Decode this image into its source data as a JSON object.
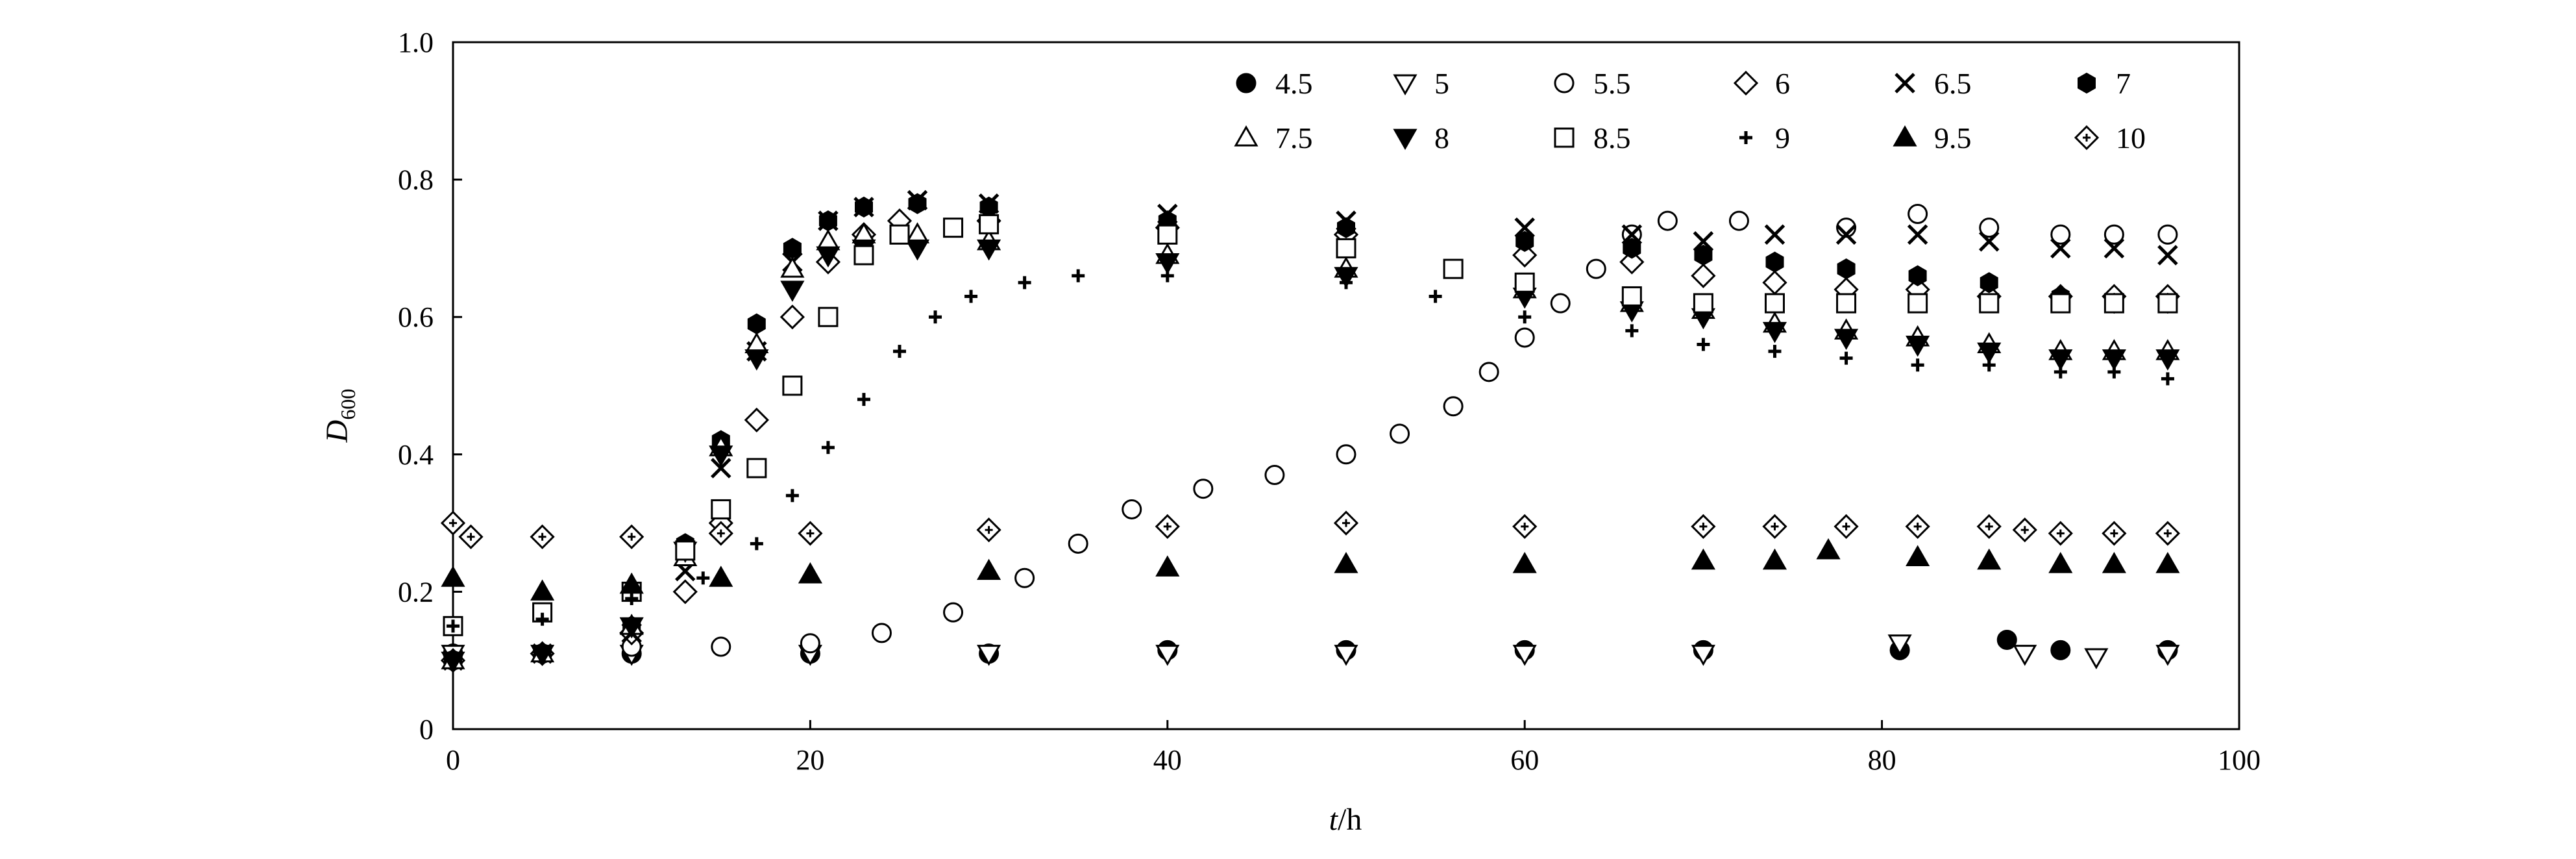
{
  "chart_data": {
    "type": "scatter",
    "xlabel": {
      "italic": "t",
      "rest": "/h"
    },
    "ylabel": {
      "main": "D",
      "sub": "600"
    },
    "xlim": [
      0,
      100
    ],
    "ylim": [
      0,
      1.0
    ],
    "xticks": [
      "0",
      "20",
      "40",
      "60",
      "80",
      "100"
    ],
    "yticks": [
      "0",
      "0.2",
      "0.4",
      "0.6",
      "0.8",
      "1.0"
    ],
    "xtick_values": [
      0,
      20,
      40,
      60,
      80,
      100
    ],
    "ytick_values": [
      0,
      0.2,
      0.4,
      0.6,
      0.8,
      1.0
    ],
    "grid": false,
    "legend_position": "top-right",
    "series": [
      {
        "name": "4.5",
        "marker": "circle-filled",
        "points": [
          [
            0,
            0.11
          ],
          [
            10,
            0.11
          ],
          [
            20,
            0.11
          ],
          [
            30,
            0.11
          ],
          [
            40,
            0.115
          ],
          [
            50,
            0.115
          ],
          [
            60,
            0.115
          ],
          [
            70,
            0.115
          ],
          [
            81,
            0.115
          ],
          [
            87,
            0.13
          ],
          [
            90,
            0.115
          ],
          [
            96,
            0.115
          ]
        ]
      },
      {
        "name": "5",
        "marker": "triangle-down-open",
        "points": [
          [
            0,
            0.11
          ],
          [
            10,
            0.11
          ],
          [
            20,
            0.11
          ],
          [
            30,
            0.11
          ],
          [
            40,
            0.11
          ],
          [
            50,
            0.11
          ],
          [
            60,
            0.11
          ],
          [
            70,
            0.11
          ],
          [
            81,
            0.125
          ],
          [
            88,
            0.11
          ],
          [
            92,
            0.105
          ],
          [
            96,
            0.11
          ]
        ]
      },
      {
        "name": "5.5",
        "marker": "circle-open",
        "points": [
          [
            0,
            0.1
          ],
          [
            5,
            0.11
          ],
          [
            10,
            0.12
          ],
          [
            15,
            0.12
          ],
          [
            20,
            0.125
          ],
          [
            24,
            0.14
          ],
          [
            28,
            0.17
          ],
          [
            32,
            0.22
          ],
          [
            35,
            0.27
          ],
          [
            38,
            0.32
          ],
          [
            42,
            0.35
          ],
          [
            46,
            0.37
          ],
          [
            50,
            0.4
          ],
          [
            53,
            0.43
          ],
          [
            56,
            0.47
          ],
          [
            58,
            0.52
          ],
          [
            60,
            0.57
          ],
          [
            62,
            0.62
          ],
          [
            64,
            0.67
          ],
          [
            66,
            0.72
          ],
          [
            68,
            0.74
          ],
          [
            72,
            0.74
          ],
          [
            78,
            0.73
          ],
          [
            82,
            0.75
          ],
          [
            86,
            0.73
          ],
          [
            90,
            0.72
          ],
          [
            93,
            0.72
          ],
          [
            96,
            0.72
          ]
        ]
      },
      {
        "name": "6",
        "marker": "diamond-open",
        "points": [
          [
            0,
            0.1
          ],
          [
            5,
            0.11
          ],
          [
            10,
            0.14
          ],
          [
            13,
            0.2
          ],
          [
            15,
            0.3
          ],
          [
            17,
            0.45
          ],
          [
            19,
            0.6
          ],
          [
            21,
            0.68
          ],
          [
            23,
            0.72
          ],
          [
            25,
            0.74
          ],
          [
            30,
            0.74
          ],
          [
            40,
            0.73
          ],
          [
            50,
            0.72
          ],
          [
            60,
            0.69
          ],
          [
            66,
            0.68
          ],
          [
            70,
            0.66
          ],
          [
            74,
            0.65
          ],
          [
            78,
            0.64
          ],
          [
            82,
            0.64
          ],
          [
            86,
            0.63
          ],
          [
            90,
            0.63
          ],
          [
            93,
            0.63
          ],
          [
            96,
            0.63
          ]
        ]
      },
      {
        "name": "6.5",
        "marker": "x",
        "points": [
          [
            0,
            0.1
          ],
          [
            5,
            0.11
          ],
          [
            10,
            0.14
          ],
          [
            13,
            0.23
          ],
          [
            15,
            0.38
          ],
          [
            17,
            0.55
          ],
          [
            19,
            0.68
          ],
          [
            21,
            0.74
          ],
          [
            23,
            0.76
          ],
          [
            26,
            0.77
          ],
          [
            30,
            0.765
          ],
          [
            40,
            0.75
          ],
          [
            50,
            0.74
          ],
          [
            60,
            0.73
          ],
          [
            66,
            0.72
          ],
          [
            70,
            0.71
          ],
          [
            74,
            0.72
          ],
          [
            78,
            0.72
          ],
          [
            82,
            0.72
          ],
          [
            86,
            0.71
          ],
          [
            90,
            0.7
          ],
          [
            93,
            0.7
          ],
          [
            96,
            0.69
          ]
        ]
      },
      {
        "name": "7",
        "marker": "hexagon-filled",
        "points": [
          [
            0,
            0.1
          ],
          [
            5,
            0.11
          ],
          [
            10,
            0.15
          ],
          [
            13,
            0.27
          ],
          [
            15,
            0.42
          ],
          [
            17,
            0.59
          ],
          [
            19,
            0.7
          ],
          [
            21,
            0.74
          ],
          [
            23,
            0.76
          ],
          [
            26,
            0.765
          ],
          [
            30,
            0.76
          ],
          [
            40,
            0.74
          ],
          [
            50,
            0.73
          ],
          [
            60,
            0.71
          ],
          [
            66,
            0.7
          ],
          [
            70,
            0.69
          ],
          [
            74,
            0.68
          ],
          [
            78,
            0.67
          ],
          [
            82,
            0.66
          ],
          [
            86,
            0.65
          ],
          [
            90,
            0.63
          ],
          [
            93,
            0.62
          ],
          [
            96,
            0.62
          ]
        ]
      },
      {
        "name": "7.5",
        "marker": "triangle-up-open",
        "points": [
          [
            0,
            0.1
          ],
          [
            5,
            0.11
          ],
          [
            10,
            0.15
          ],
          [
            13,
            0.25
          ],
          [
            15,
            0.41
          ],
          [
            17,
            0.56
          ],
          [
            19,
            0.67
          ],
          [
            21,
            0.71
          ],
          [
            23,
            0.72
          ],
          [
            26,
            0.72
          ],
          [
            30,
            0.71
          ],
          [
            40,
            0.69
          ],
          [
            50,
            0.67
          ],
          [
            60,
            0.64
          ],
          [
            66,
            0.62
          ],
          [
            70,
            0.61
          ],
          [
            74,
            0.59
          ],
          [
            78,
            0.58
          ],
          [
            82,
            0.57
          ],
          [
            86,
            0.56
          ],
          [
            90,
            0.55
          ],
          [
            93,
            0.55
          ],
          [
            96,
            0.55
          ]
        ]
      },
      {
        "name": "8",
        "marker": "triangle-down-filled",
        "points": [
          [
            0,
            0.1
          ],
          [
            5,
            0.11
          ],
          [
            10,
            0.15
          ],
          [
            13,
            0.26
          ],
          [
            15,
            0.4
          ],
          [
            17,
            0.54
          ],
          [
            19,
            0.64
          ],
          [
            21,
            0.69
          ],
          [
            23,
            0.7
          ],
          [
            26,
            0.7
          ],
          [
            30,
            0.7
          ],
          [
            40,
            0.68
          ],
          [
            50,
            0.66
          ],
          [
            60,
            0.63
          ],
          [
            66,
            0.61
          ],
          [
            70,
            0.6
          ],
          [
            74,
            0.58
          ],
          [
            78,
            0.57
          ],
          [
            82,
            0.56
          ],
          [
            86,
            0.55
          ],
          [
            90,
            0.54
          ],
          [
            93,
            0.54
          ],
          [
            96,
            0.54
          ]
        ]
      },
      {
        "name": "8.5",
        "marker": "square-open",
        "points": [
          [
            0,
            0.15
          ],
          [
            5,
            0.17
          ],
          [
            10,
            0.2
          ],
          [
            13,
            0.26
          ],
          [
            15,
            0.32
          ],
          [
            17,
            0.38
          ],
          [
            19,
            0.5
          ],
          [
            21,
            0.6
          ],
          [
            23,
            0.69
          ],
          [
            25,
            0.72
          ],
          [
            28,
            0.73
          ],
          [
            30,
            0.735
          ],
          [
            40,
            0.72
          ],
          [
            50,
            0.7
          ],
          [
            56,
            0.67
          ],
          [
            60,
            0.65
          ],
          [
            66,
            0.63
          ],
          [
            70,
            0.62
          ],
          [
            74,
            0.62
          ],
          [
            78,
            0.62
          ],
          [
            82,
            0.62
          ],
          [
            86,
            0.62
          ],
          [
            90,
            0.62
          ],
          [
            93,
            0.62
          ],
          [
            96,
            0.62
          ]
        ]
      },
      {
        "name": "9",
        "marker": "plus",
        "points": [
          [
            0,
            0.15
          ],
          [
            5,
            0.16
          ],
          [
            10,
            0.19
          ],
          [
            14,
            0.22
          ],
          [
            17,
            0.27
          ],
          [
            19,
            0.34
          ],
          [
            21,
            0.41
          ],
          [
            23,
            0.48
          ],
          [
            25,
            0.55
          ],
          [
            27,
            0.6
          ],
          [
            29,
            0.63
          ],
          [
            32,
            0.65
          ],
          [
            35,
            0.66
          ],
          [
            40,
            0.66
          ],
          [
            50,
            0.65
          ],
          [
            55,
            0.63
          ],
          [
            60,
            0.6
          ],
          [
            66,
            0.58
          ],
          [
            70,
            0.56
          ],
          [
            74,
            0.55
          ],
          [
            78,
            0.54
          ],
          [
            82,
            0.53
          ],
          [
            86,
            0.53
          ],
          [
            90,
            0.52
          ],
          [
            93,
            0.52
          ],
          [
            96,
            0.51
          ]
        ]
      },
      {
        "name": "9.5",
        "marker": "triangle-up-filled",
        "points": [
          [
            0,
            0.22
          ],
          [
            5,
            0.2
          ],
          [
            10,
            0.21
          ],
          [
            15,
            0.22
          ],
          [
            20,
            0.225
          ],
          [
            30,
            0.23
          ],
          [
            40,
            0.235
          ],
          [
            50,
            0.24
          ],
          [
            60,
            0.24
          ],
          [
            70,
            0.245
          ],
          [
            74,
            0.245
          ],
          [
            77,
            0.26
          ],
          [
            82,
            0.25
          ],
          [
            86,
            0.245
          ],
          [
            90,
            0.24
          ],
          [
            93,
            0.24
          ],
          [
            96,
            0.24
          ]
        ]
      },
      {
        "name": "10",
        "marker": "diamond-cross",
        "points": [
          [
            0,
            0.3
          ],
          [
            1,
            0.28
          ],
          [
            5,
            0.28
          ],
          [
            10,
            0.28
          ],
          [
            15,
            0.285
          ],
          [
            20,
            0.285
          ],
          [
            30,
            0.29
          ],
          [
            40,
            0.295
          ],
          [
            50,
            0.3
          ],
          [
            60,
            0.295
          ],
          [
            70,
            0.295
          ],
          [
            74,
            0.295
          ],
          [
            78,
            0.295
          ],
          [
            82,
            0.295
          ],
          [
            86,
            0.295
          ],
          [
            88,
            0.29
          ],
          [
            90,
            0.285
          ],
          [
            93,
            0.285
          ],
          [
            96,
            0.285
          ]
        ]
      }
    ]
  }
}
